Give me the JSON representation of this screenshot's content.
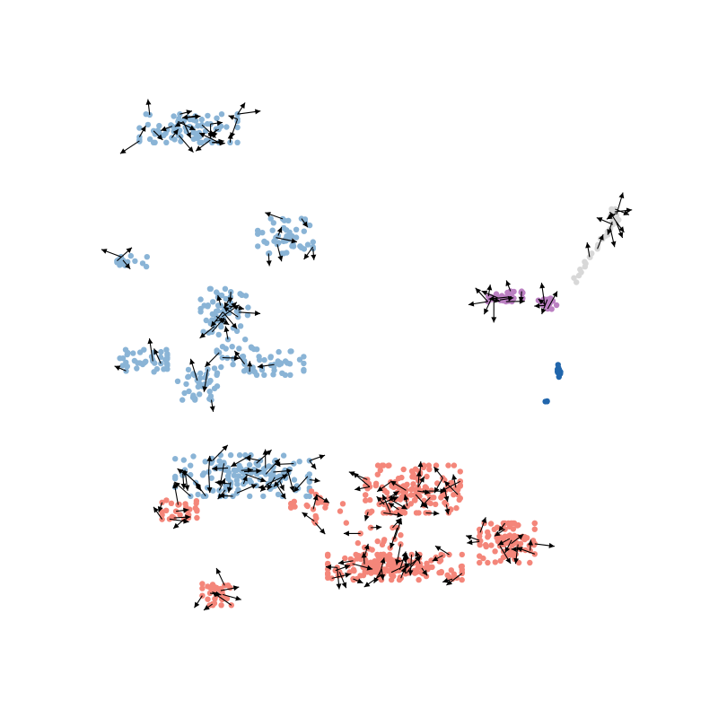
{
  "chart_data": {
    "type": "scatter",
    "title": "",
    "xlabel": "",
    "ylabel": "",
    "axes_visible": false,
    "grid": false,
    "legend": "none",
    "series": [
      {
        "color": "#8ab4d6",
        "clusters": [
          {
            "c": [
              210,
              143
            ],
            "r": [
              62,
              18
            ],
            "n": 85
          },
          {
            "c": [
              318,
              263
            ],
            "r": [
              35,
              22
            ],
            "n": 50
          },
          {
            "c": [
              148,
              293
            ],
            "r": [
              20,
              9
            ],
            "n": 14
          },
          {
            "c": [
              250,
              350
            ],
            "r": [
              30,
              32
            ],
            "n": 60
          },
          {
            "c": [
              160,
              402
            ],
            "r": [
              30,
              14
            ],
            "n": 40
          },
          {
            "c": [
              290,
              402
            ],
            "r": [
              55,
              18
            ],
            "n": 60
          },
          {
            "c": [
              220,
              428
            ],
            "r": [
              25,
              20
            ],
            "n": 40
          },
          {
            "c": [
              270,
              530
            ],
            "r": [
              85,
              26
            ],
            "n": 140
          }
        ]
      },
      {
        "color": "#f4867a",
        "clusters": [
          {
            "c": [
              200,
              568
            ],
            "r": [
              22,
              12
            ],
            "n": 30
          },
          {
            "c": [
              460,
              545
            ],
            "r": [
              60,
              30
            ],
            "n": 150
          },
          {
            "c": [
              420,
              610
            ],
            "r": [
              30,
              25
            ],
            "n": 30
          },
          {
            "c": [
              440,
              632
            ],
            "r": [
              85,
              16
            ],
            "n": 160
          },
          {
            "c": [
              565,
              605
            ],
            "r": [
              35,
              25
            ],
            "n": 90
          },
          {
            "c": [
              243,
              662
            ],
            "r": [
              20,
              14
            ],
            "n": 35
          },
          {
            "c": [
              355,
              565
            ],
            "r": [
              35,
              20
            ],
            "n": 25
          }
        ]
      },
      {
        "color": "#bb80c2",
        "clusters": [
          {
            "c": [
              563,
              330
            ],
            "r": [
              22,
              7
            ],
            "n": 30
          },
          {
            "c": [
              610,
              337
            ],
            "r": [
              12,
              10
            ],
            "n": 20
          }
        ]
      },
      {
        "color": "#2166ac",
        "clusters": [
          {
            "c": [
              623,
              413
            ],
            "r": [
              2,
              8
            ],
            "n": 10
          },
          {
            "c": [
              609,
              446
            ],
            "r": [
              2,
              2
            ],
            "n": 3
          }
        ]
      },
      {
        "color": "#d8d8d8",
        "clusters": [
          {
            "c": [
              685,
              240
            ],
            "r": [
              5,
              8
            ],
            "n": 15
          }
        ],
        "line": {
          "from": [
            685,
            248
          ],
          "to": [
            640,
            312
          ],
          "n": 22
        }
      }
    ],
    "velocity_arrows": {
      "color": "#000000",
      "count": 230
    }
  }
}
